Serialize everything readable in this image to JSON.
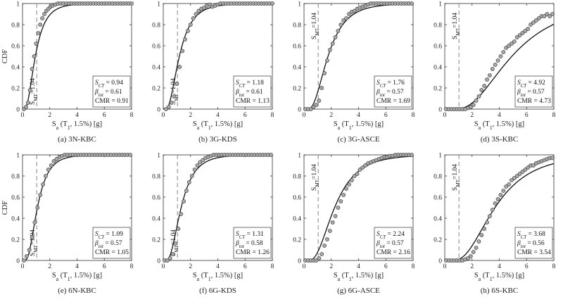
{
  "chart_data": [
    {
      "type": "scatter",
      "caption": "(a) 3N-KBC",
      "ylabel": "CDF",
      "xlabel": "S_a (T_1, 1.5%) [g]",
      "xlim": [
        0,
        8
      ],
      "ylim": [
        0,
        1
      ],
      "xticks": [
        "0",
        "2",
        "4",
        "6",
        "8"
      ],
      "yticks": [
        "0",
        "0.2",
        "0.4",
        "0.6",
        "0.8",
        "1"
      ],
      "smt_label": "S_MT=1.04",
      "smt_value": 1.04,
      "stats": {
        "S_CT": "0.94",
        "beta_tot": "0.61",
        "CMR": "0.91"
      },
      "median": 0.94,
      "beta": 0.61,
      "points_x": [
        0.1,
        0.25,
        0.4,
        0.55,
        0.7,
        0.85,
        1.0,
        1.15,
        1.3,
        1.45,
        1.6,
        1.75,
        1.9,
        2.05,
        2.2,
        2.4,
        2.6,
        2.8,
        3.0,
        3.2,
        3.4,
        3.6,
        3.8,
        4.0,
        4.2,
        4.4,
        4.6,
        4.8,
        5.0,
        5.2,
        5.4,
        5.6,
        5.8,
        6.0,
        6.2,
        6.4,
        6.6,
        6.8,
        7.0,
        7.2,
        7.4,
        7.6,
        7.8,
        8.0
      ],
      "points_y": [
        0.0,
        0.02,
        0.06,
        0.18,
        0.38,
        0.5,
        0.62,
        0.72,
        0.8,
        0.86,
        0.9,
        0.93,
        0.95,
        0.97,
        0.98,
        0.99,
        1,
        1,
        1,
        1,
        1,
        1,
        1,
        1,
        1,
        1,
        1,
        1,
        1,
        1,
        1,
        1,
        1,
        1,
        1,
        1,
        1,
        1,
        1,
        1,
        1,
        1,
        1,
        1
      ]
    },
    {
      "type": "scatter",
      "caption": "(b) 3G-KDS",
      "ylabel": "",
      "xlabel": "S_a (T_1, 1.5%) [g]",
      "xlim": [
        0,
        8
      ],
      "ylim": [
        0,
        1
      ],
      "xticks": [
        "0",
        "2",
        "4",
        "6",
        "8"
      ],
      "yticks": [
        "0",
        "0.2",
        "0.4",
        "0.6",
        "0.8",
        "1"
      ],
      "smt_label": "S_MT=1.04",
      "smt_value": 1.04,
      "stats": {
        "S_CT": "1.18",
        "beta_tot": "0.61",
        "CMR": "1.13"
      },
      "median": 1.18,
      "beta": 0.61,
      "points_x": [
        0.2,
        0.4,
        0.6,
        0.8,
        1.0,
        1.2,
        1.4,
        1.6,
        1.8,
        2.0,
        2.2,
        2.4,
        2.6,
        2.8,
        3.0,
        3.2,
        3.4,
        3.6,
        3.8,
        4.0,
        4.2,
        4.4,
        4.6,
        4.8,
        5.0,
        5.2,
        5.4,
        5.6,
        5.8,
        6.0,
        6.2,
        6.4,
        6.6,
        6.8,
        7.0,
        7.2,
        7.4,
        7.6,
        7.8,
        8.0
      ],
      "points_y": [
        0.0,
        0.02,
        0.06,
        0.12,
        0.24,
        0.4,
        0.55,
        0.66,
        0.74,
        0.8,
        0.86,
        0.9,
        0.93,
        0.95,
        0.96,
        0.98,
        0.99,
        0.97,
        0.98,
        0.99,
        1,
        1,
        1,
        1,
        1,
        1,
        1,
        1,
        1,
        1,
        1,
        1,
        1,
        1,
        1,
        1,
        1,
        1,
        1,
        1
      ]
    },
    {
      "type": "scatter",
      "caption": "(c) 3G-ASCE",
      "ylabel": "",
      "xlabel": "S_a (T_1, 1.5%) [g]",
      "xlim": [
        0,
        8
      ],
      "ylim": [
        0,
        1
      ],
      "xticks": [
        "0",
        "2",
        "4",
        "6",
        "8"
      ],
      "yticks": [
        "0",
        "0.2",
        "0.4",
        "0.6",
        "0.8",
        "1"
      ],
      "smt_label": "S_MT=1.04",
      "smt_value": 1.04,
      "stats": {
        "S_CT": "1.76",
        "beta_tot": "0.57",
        "CMR": "1.69"
      },
      "median": 1.76,
      "beta": 0.57,
      "points_x": [
        0.1,
        0.3,
        0.5,
        0.7,
        0.9,
        1.1,
        1.3,
        1.5,
        1.7,
        1.9,
        2.1,
        2.3,
        2.5,
        2.7,
        2.9,
        3.1,
        3.3,
        3.5,
        3.7,
        3.9,
        4.1,
        4.3,
        4.5,
        4.7,
        4.9,
        5.1,
        5.3,
        5.5,
        5.7,
        5.9,
        6.1,
        6.3,
        6.5,
        6.7,
        6.9,
        7.1,
        7.3,
        7.5,
        7.7,
        7.9
      ],
      "points_y": [
        0,
        0,
        0,
        0.02,
        0.04,
        0.08,
        0.2,
        0.34,
        0.46,
        0.56,
        0.62,
        0.68,
        0.74,
        0.8,
        0.84,
        0.86,
        0.9,
        0.92,
        0.93,
        0.95,
        0.96,
        0.97,
        0.98,
        0.99,
        1,
        1,
        1,
        1,
        1,
        1,
        1,
        1,
        1,
        1,
        1,
        1,
        1,
        1,
        1,
        1
      ]
    },
    {
      "type": "scatter",
      "caption": "(d) 3S-KBC",
      "ylabel": "",
      "xlabel": "S_a (T_1, 1.5%) [g]",
      "xlim": [
        0,
        8
      ],
      "ylim": [
        0,
        1
      ],
      "xticks": [
        "0",
        "2",
        "4",
        "6",
        "8"
      ],
      "yticks": [
        "0",
        "0.2",
        "0.4",
        "0.6",
        "0.8",
        "1"
      ],
      "smt_label": "S_MT=1.04",
      "smt_value": 1.04,
      "stats": {
        "S_CT": "4.92",
        "beta_tot": "0.57",
        "CMR": "4.73"
      },
      "median": 4.92,
      "beta": 0.57,
      "points_x": [
        0.1,
        0.3,
        0.5,
        0.7,
        0.9,
        1.1,
        1.3,
        1.5,
        1.7,
        1.9,
        2.1,
        2.3,
        2.5,
        2.7,
        2.9,
        3.1,
        3.3,
        3.5,
        3.7,
        3.9,
        4.1,
        4.3,
        4.5,
        4.7,
        4.9,
        5.1,
        5.3,
        5.5,
        5.7,
        5.9,
        6.1,
        6.3,
        6.5,
        6.7,
        6.9,
        7.1,
        7.3,
        7.5,
        7.7,
        7.9
      ],
      "points_y": [
        0,
        0,
        0,
        0,
        0,
        0,
        0,
        0,
        0.01,
        0.02,
        0.04,
        0.08,
        0.12,
        0.18,
        0.22,
        0.28,
        0.32,
        0.38,
        0.42,
        0.46,
        0.5,
        0.54,
        0.58,
        0.6,
        0.62,
        0.64,
        0.68,
        0.7,
        0.72,
        0.74,
        0.76,
        0.8,
        0.82,
        0.84,
        0.86,
        0.88,
        0.88,
        0.9,
        0.88,
        0.9
      ]
    },
    {
      "type": "scatter",
      "caption": "(e) 6N-KBC",
      "ylabel": "CDF",
      "xlabel": "S_a (T_1, 1.5%) [g]",
      "xlim": [
        0,
        8
      ],
      "ylim": [
        0,
        1
      ],
      "xticks": [
        "0",
        "2",
        "4",
        "6",
        "8"
      ],
      "yticks": [
        "0",
        "0.2",
        "0.4",
        "0.6",
        "0.8",
        "1"
      ],
      "smt_label": "S_MT=1.04",
      "smt_value": 1.04,
      "stats": {
        "S_CT": "1.09",
        "beta_tot": "0.57",
        "CMR": "1.05"
      },
      "median": 1.09,
      "beta": 0.57,
      "points_x": [
        0.1,
        0.3,
        0.5,
        0.7,
        0.9,
        1.1,
        1.3,
        1.5,
        1.7,
        1.9,
        2.1,
        2.3,
        2.5,
        2.7,
        2.9,
        3.1,
        3.3,
        3.5,
        3.7,
        3.9,
        4.1,
        4.3,
        4.5,
        4.7,
        4.9,
        5.1,
        5.3,
        5.5,
        5.7,
        5.9,
        6.1,
        6.3,
        6.5,
        6.7,
        6.9,
        7.1,
        7.3,
        7.5,
        7.7,
        7.9
      ],
      "points_y": [
        0,
        0.04,
        0.1,
        0.22,
        0.36,
        0.5,
        0.62,
        0.72,
        0.8,
        0.86,
        0.9,
        0.94,
        0.96,
        0.98,
        0.99,
        1,
        1,
        1,
        1,
        1,
        1,
        1,
        1,
        1,
        1,
        1,
        1,
        1,
        1,
        1,
        1,
        1,
        1,
        1,
        1,
        1,
        1,
        1,
        1,
        1
      ]
    },
    {
      "type": "scatter",
      "caption": "(f) 6G-KDS",
      "ylabel": "",
      "xlabel": "S_a (T_1, 1.5%) [g]",
      "xlim": [
        0,
        8
      ],
      "ylim": [
        0,
        1
      ],
      "xticks": [
        "0",
        "2",
        "4",
        "6",
        "8"
      ],
      "yticks": [
        "0",
        "0.2",
        "0.4",
        "0.6",
        "0.8",
        "1"
      ],
      "smt_label": "S_MT=1.04",
      "smt_value": 1.04,
      "stats": {
        "S_CT": "1.31",
        "beta_tot": "0.58",
        "CMR": "1.26"
      },
      "median": 1.31,
      "beta": 0.58,
      "points_x": [
        0.1,
        0.3,
        0.5,
        0.7,
        0.9,
        1.1,
        1.3,
        1.5,
        1.7,
        1.9,
        2.1,
        2.3,
        2.5,
        2.7,
        2.9,
        3.1,
        3.3,
        3.5,
        3.7,
        3.9,
        4.1,
        4.3,
        4.5,
        4.7,
        4.9,
        5.1,
        5.3,
        5.5,
        5.7,
        5.9,
        6.1,
        6.3,
        6.5,
        6.7,
        6.9,
        7.1,
        7.3,
        7.5,
        7.7,
        7.9
      ],
      "points_y": [
        0,
        0,
        0.02,
        0.06,
        0.16,
        0.3,
        0.44,
        0.56,
        0.66,
        0.74,
        0.8,
        0.86,
        0.9,
        0.93,
        0.95,
        0.97,
        0.98,
        0.99,
        1,
        1,
        1,
        1,
        1,
        1,
        1,
        1,
        1,
        1,
        1,
        1,
        1,
        1,
        1,
        1,
        1,
        1,
        1,
        1,
        1,
        1
      ]
    },
    {
      "type": "scatter",
      "caption": "(g) 6G-ASCE",
      "ylabel": "",
      "xlabel": "S_a (T_1, 1.5%) [g]",
      "xlim": [
        0,
        8
      ],
      "ylim": [
        0,
        1
      ],
      "xticks": [
        "0",
        "2",
        "4",
        "6",
        "8"
      ],
      "yticks": [
        "0",
        "0.2",
        "0.4",
        "0.6",
        "0.8",
        "1"
      ],
      "smt_label": "S_MT=1.04",
      "smt_value": 1.04,
      "stats": {
        "S_CT": "2.24",
        "beta_tot": "0.57",
        "CMR": "2.16"
      },
      "median": 2.24,
      "beta": 0.57,
      "points_x": [
        0.1,
        0.3,
        0.5,
        0.7,
        0.9,
        1.1,
        1.3,
        1.5,
        1.7,
        1.9,
        2.1,
        2.3,
        2.5,
        2.7,
        2.9,
        3.1,
        3.3,
        3.5,
        3.7,
        3.9,
        4.1,
        4.3,
        4.5,
        4.7,
        4.9,
        5.1,
        5.3,
        5.5,
        5.7,
        5.9,
        6.1,
        6.3,
        6.5,
        6.7,
        6.9,
        7.1,
        7.3,
        7.5,
        7.7,
        7.9
      ],
      "points_y": [
        0,
        0,
        0,
        0,
        0,
        0.02,
        0.06,
        0.14,
        0.2,
        0.28,
        0.36,
        0.42,
        0.5,
        0.56,
        0.62,
        0.68,
        0.72,
        0.76,
        0.8,
        0.82,
        0.86,
        0.88,
        0.9,
        0.92,
        0.93,
        0.94,
        0.95,
        0.96,
        0.97,
        0.98,
        0.98,
        0.99,
        0.99,
        1,
        1,
        1,
        1,
        1,
        1,
        1
      ]
    },
    {
      "type": "scatter",
      "caption": "(h) 6S-KBC",
      "ylabel": "",
      "xlabel": "S_a (T_1, 1.5%) [g]",
      "xlim": [
        0,
        8
      ],
      "ylim": [
        0,
        1
      ],
      "xticks": [
        "0",
        "2",
        "4",
        "6",
        "8"
      ],
      "yticks": [
        "0",
        "0.2",
        "0.4",
        "0.6",
        "0.8",
        "1"
      ],
      "smt_label": "S_MT=1.04",
      "smt_value": 1.04,
      "stats": {
        "S_CT": "3.68",
        "beta_tot": "0.56",
        "CMR": "3.54"
      },
      "median": 3.68,
      "beta": 0.56,
      "points_x": [
        0.1,
        0.3,
        0.5,
        0.7,
        0.9,
        1.1,
        1.3,
        1.5,
        1.7,
        1.9,
        2.1,
        2.3,
        2.5,
        2.7,
        2.9,
        3.1,
        3.3,
        3.5,
        3.7,
        3.9,
        4.1,
        4.3,
        4.5,
        4.7,
        4.9,
        5.1,
        5.3,
        5.5,
        5.7,
        5.9,
        6.1,
        6.3,
        6.5,
        6.7,
        6.9,
        7.1,
        7.3,
        7.5,
        7.7,
        7.9
      ],
      "points_y": [
        0,
        0,
        0,
        0,
        0,
        0,
        0,
        0.01,
        0.02,
        0.04,
        0.08,
        0.12,
        0.18,
        0.24,
        0.3,
        0.36,
        0.42,
        0.48,
        0.54,
        0.58,
        0.62,
        0.66,
        0.7,
        0.72,
        0.76,
        0.78,
        0.8,
        0.82,
        0.84,
        0.86,
        0.88,
        0.9,
        0.9,
        0.92,
        0.93,
        0.94,
        0.95,
        0.96,
        0.97,
        0.97
      ]
    }
  ]
}
